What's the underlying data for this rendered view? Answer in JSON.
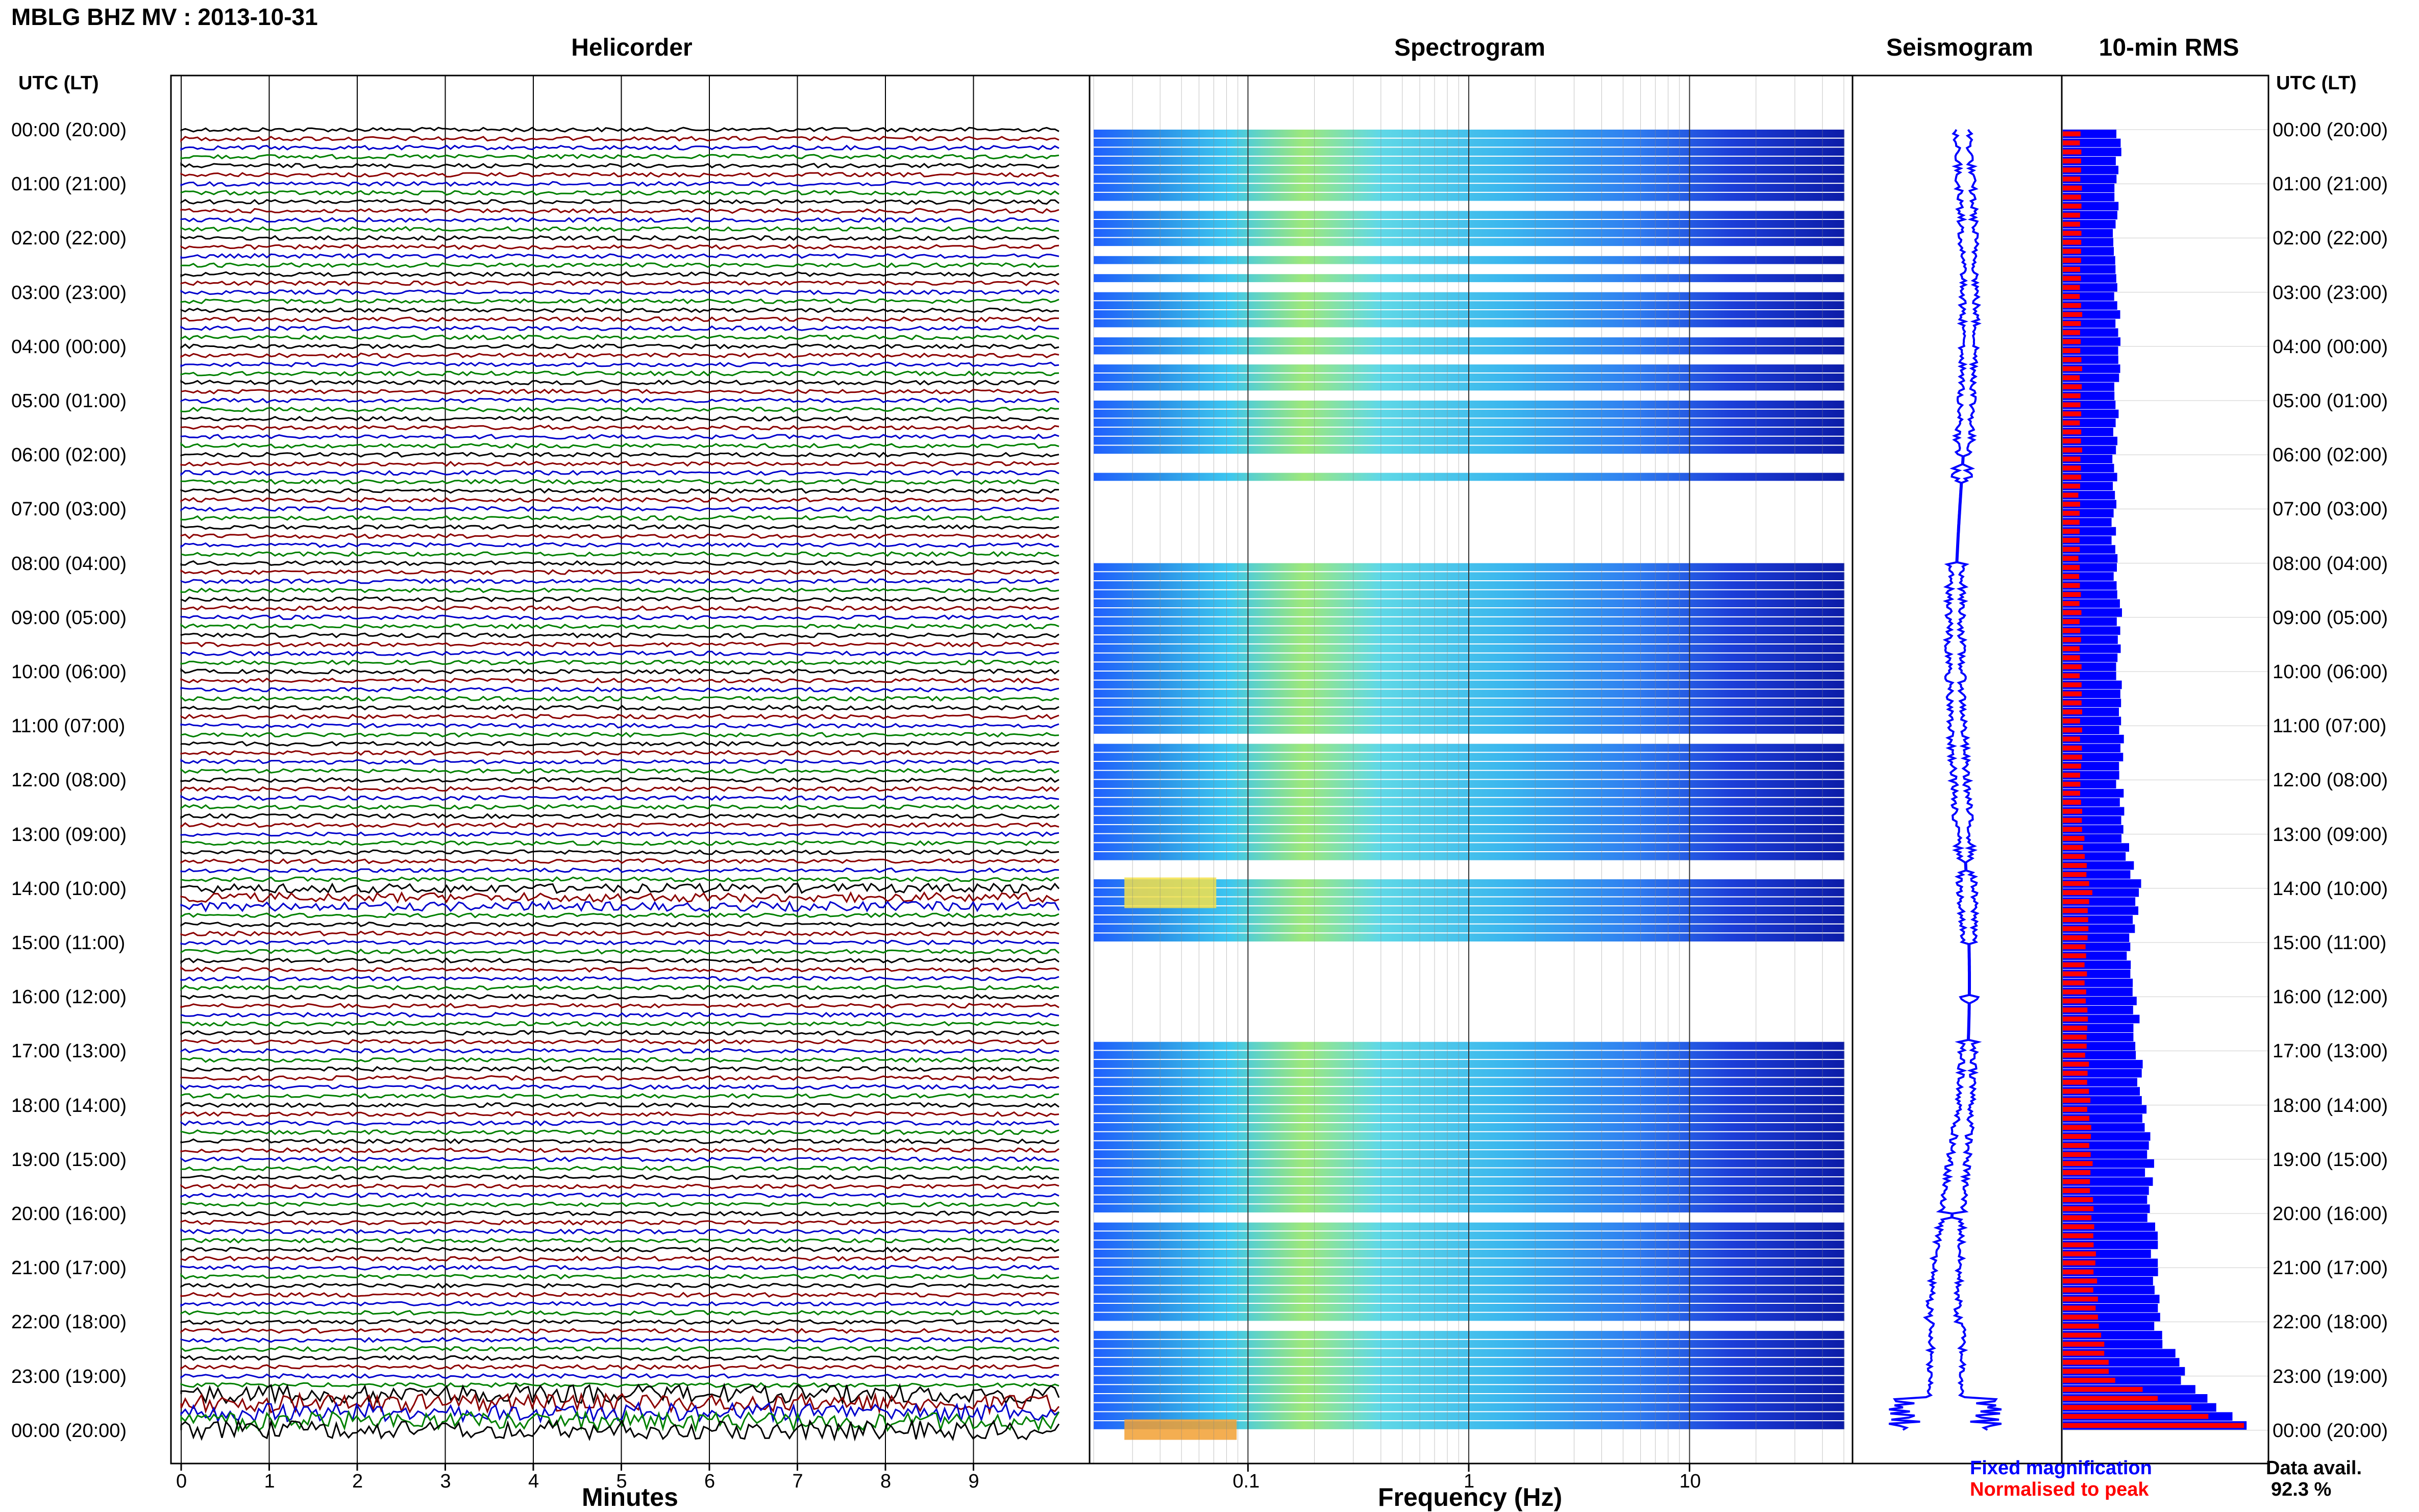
{
  "header": {
    "title": "MBLG BHZ MV : 2013-10-31"
  },
  "panels": {
    "helicorder": "Helicorder",
    "spectrogram": "Spectrogram",
    "seismogram": "Seismogram",
    "rms": "10-min RMS"
  },
  "left_axis": {
    "header": "UTC (LT)",
    "rows": [
      "00:00 (20:00)",
      "01:00 (21:00)",
      "02:00 (22:00)",
      "03:00 (23:00)",
      "04:00 (00:00)",
      "05:00 (01:00)",
      "06:00 (02:00)",
      "07:00 (03:00)",
      "08:00 (04:00)",
      "09:00 (05:00)",
      "10:00 (06:00)",
      "11:00 (07:00)",
      "12:00 (08:00)",
      "13:00 (09:00)",
      "14:00 (10:00)",
      "15:00 (11:00)",
      "16:00 (12:00)",
      "17:00 (13:00)",
      "18:00 (14:00)",
      "19:00 (15:00)",
      "20:00 (16:00)",
      "21:00 (17:00)",
      "22:00 (18:00)",
      "23:00 (19:00)",
      "00:00 (20:00)"
    ]
  },
  "right_axis": {
    "header": "UTC (LT)",
    "rows": [
      "00:00 (20:00)",
      "01:00 (21:00)",
      "02:00 (22:00)",
      "03:00 (23:00)",
      "04:00 (00:00)",
      "05:00 (01:00)",
      "06:00 (02:00)",
      "07:00 (03:00)",
      "08:00 (04:00)",
      "09:00 (05:00)",
      "10:00 (06:00)",
      "11:00 (07:00)",
      "12:00 (08:00)",
      "13:00 (09:00)",
      "14:00 (10:00)",
      "15:00 (11:00)",
      "16:00 (12:00)",
      "17:00 (13:00)",
      "18:00 (14:00)",
      "19:00 (15:00)",
      "20:00 (16:00)",
      "21:00 (17:00)",
      "22:00 (18:00)",
      "23:00 (19:00)",
      "00:00 (20:00)"
    ]
  },
  "chart_data": {
    "type": "heatmap",
    "helicorder": {
      "xlabel": "Minutes",
      "xticks": [
        "0",
        "1",
        "2",
        "3",
        "4",
        "5",
        "6",
        "7",
        "8",
        "9"
      ],
      "xlim": [
        0,
        10
      ],
      "trace_colors": [
        "#000000",
        "#8b0000",
        "#0000cc",
        "#008000"
      ],
      "lines_per_hour": 6
    },
    "spectrogram": {
      "xlabel": "Frequency (Hz)",
      "xscale": "log",
      "xticks": [
        "0.1",
        "1",
        "10"
      ],
      "xlim": [
        0.02,
        50
      ]
    },
    "seismogram": {
      "color": "#0000ff"
    },
    "rms": {
      "legend": {
        "fixed": "Fixed magnification",
        "normalised": "Normalised to peak"
      },
      "fixed_color": "#0000ff",
      "normalised_color": "#ff0000",
      "blue_hourly": [
        0.28,
        0.27,
        0.26,
        0.27,
        0.27,
        0.27,
        0.26,
        0.25,
        0.26,
        0.28,
        0.28,
        0.29,
        0.28,
        0.3,
        0.38,
        0.33,
        0.36,
        0.37,
        0.4,
        0.43,
        0.44,
        0.46,
        0.47,
        0.6,
        0.96
      ],
      "red_hourly": [
        0.09,
        0.09,
        0.09,
        0.09,
        0.09,
        0.09,
        0.09,
        0.08,
        0.08,
        0.09,
        0.09,
        0.09,
        0.09,
        0.1,
        0.14,
        0.11,
        0.12,
        0.12,
        0.13,
        0.14,
        0.15,
        0.16,
        0.17,
        0.25,
        1.0
      ]
    },
    "data_availability": {
      "label": "Data avail.",
      "value": "92.3 %"
    }
  }
}
